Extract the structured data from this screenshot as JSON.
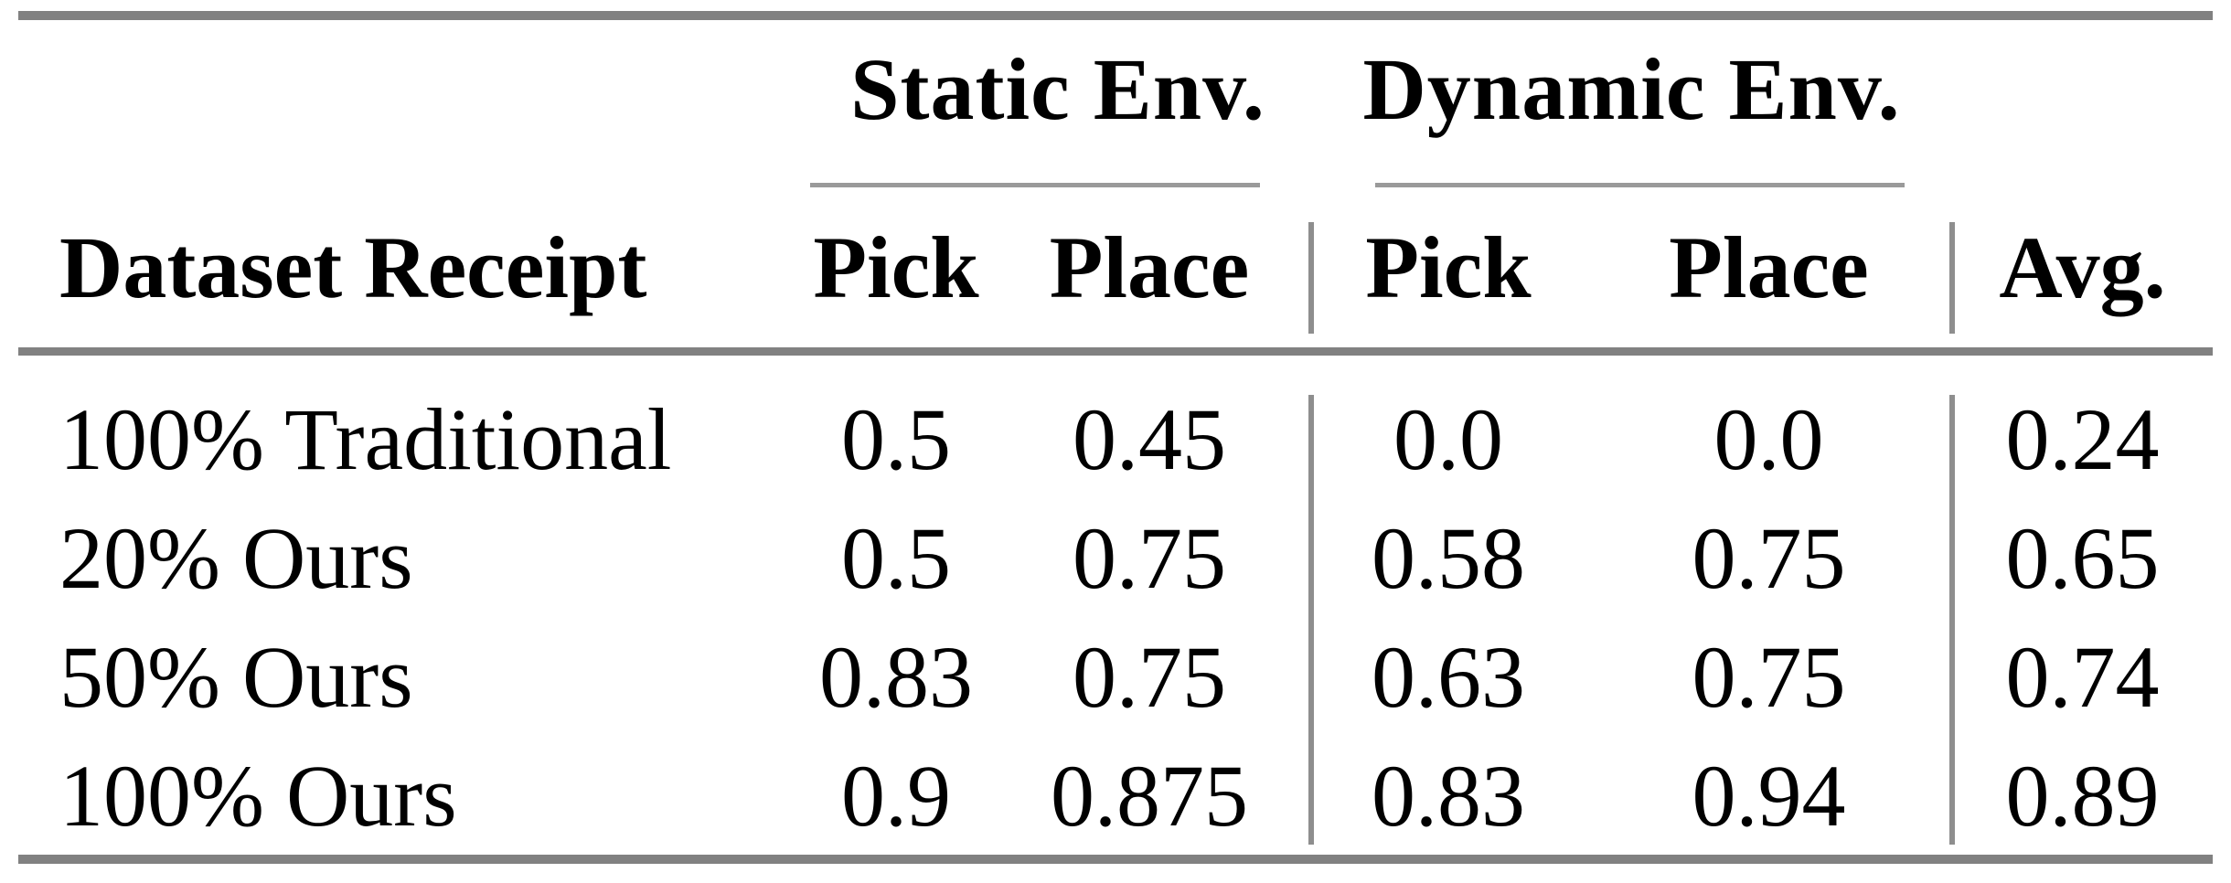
{
  "colors": {
    "background": "#ffffff",
    "text": "#000000",
    "heavy_rule": "#818181",
    "cmidrule": "#9a9a9a",
    "vertical_rule": "#8e8e8e"
  },
  "table": {
    "column_spanners": [
      {
        "label": "Static Env."
      },
      {
        "label": "Dynamic Env."
      }
    ],
    "headers": {
      "row_label": "Dataset Receipt",
      "static_pick": "Pick",
      "static_place": "Place",
      "dynamic_pick": "Pick",
      "dynamic_place": "Place",
      "avg": "Avg."
    },
    "rows": [
      {
        "label": "100% Traditional",
        "static_pick": "0.5",
        "static_place": "0.45",
        "dynamic_pick": "0.0",
        "dynamic_place": "0.0",
        "avg": "0.24"
      },
      {
        "label": "20% Ours",
        "static_pick": "0.5",
        "static_place": "0.75",
        "dynamic_pick": "0.58",
        "dynamic_place": "0.75",
        "avg": "0.65"
      },
      {
        "label": "50% Ours",
        "static_pick": "0.83",
        "static_place": "0.75",
        "dynamic_pick": "0.63",
        "dynamic_place": "0.75",
        "avg": "0.74"
      },
      {
        "label": "100% Ours",
        "static_pick": "0.9",
        "static_place": "0.875",
        "dynamic_pick": "0.83",
        "dynamic_place": "0.94",
        "avg": "0.89"
      }
    ]
  },
  "chart_data": {
    "type": "table",
    "title": "",
    "column_groups": [
      "Static Env.",
      "Dynamic Env."
    ],
    "columns": [
      "Dataset Receipt",
      "Static Env. Pick",
      "Static Env. Place",
      "Dynamic Env. Pick",
      "Dynamic Env. Place",
      "Avg."
    ],
    "rows": [
      [
        "100% Traditional",
        0.5,
        0.45,
        0.0,
        0.0,
        0.24
      ],
      [
        "20% Ours",
        0.5,
        0.75,
        0.58,
        0.75,
        0.65
      ],
      [
        "50% Ours",
        0.83,
        0.75,
        0.63,
        0.75,
        0.74
      ],
      [
        "100% Ours",
        0.9,
        0.875,
        0.83,
        0.94,
        0.89
      ]
    ]
  }
}
